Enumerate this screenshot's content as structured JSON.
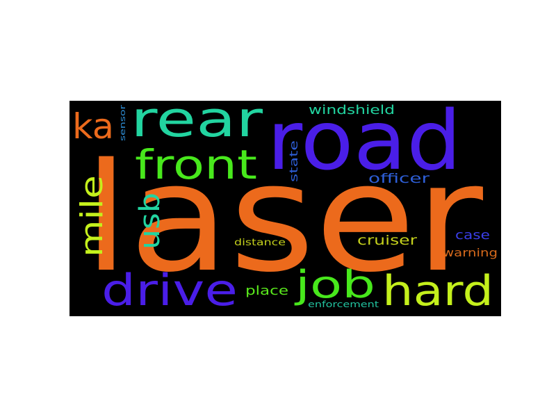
{
  "background_color": "#000000",
  "page_background": "#ffffff",
  "words": [
    {
      "text": "laser",
      "color": "#ec6a1c"
    },
    {
      "text": "road",
      "color": "#4a1ee8"
    },
    {
      "text": "rear",
      "color": "#22d4a0"
    },
    {
      "text": "front",
      "color": "#48e81c"
    },
    {
      "text": "ka",
      "color": "#ec6a1c"
    },
    {
      "text": "drive",
      "color": "#4a1ee8"
    },
    {
      "text": "hard",
      "color": "#c4f01c"
    },
    {
      "text": "job",
      "color": "#48e81c"
    },
    {
      "text": "mile",
      "color": "#c4f01c"
    },
    {
      "text": "usb",
      "color": "#22d4a0"
    },
    {
      "text": "windshield",
      "color": "#22d4a0"
    },
    {
      "text": "officer",
      "color": "#2e5fd8"
    },
    {
      "text": "state",
      "color": "#2e5fd8"
    },
    {
      "text": "sensor",
      "color": "#2e8fd8"
    },
    {
      "text": "cruiser",
      "color": "#c4d01c"
    },
    {
      "text": "case",
      "color": "#3a3ee8"
    },
    {
      "text": "warning",
      "color": "#d86a1c"
    },
    {
      "text": "distance",
      "color": "#c4d01c"
    },
    {
      "text": "place",
      "color": "#5ae81c"
    },
    {
      "text": "enforcement",
      "color": "#22c4a0"
    }
  ]
}
